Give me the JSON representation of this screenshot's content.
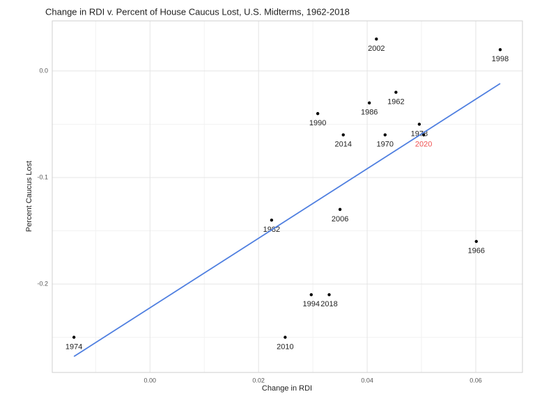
{
  "chart_data": {
    "type": "scatter",
    "title": "Change in RDI v. Percent of House Caucus Lost, U.S. Midterms, 1962-2018",
    "x_label": "Change in RDI",
    "y_label": "Percent Caucus Lost",
    "labels": [
      "2002",
      "1998",
      "1962",
      "1986",
      "1990",
      "1978",
      "2014",
      "1970",
      "2020",
      "2006",
      "1982",
      "1966",
      "1994",
      "2018",
      "1974",
      "2010"
    ],
    "x": [
      0.0417,
      0.0645,
      0.0453,
      0.0404,
      0.0309,
      0.0496,
      0.0356,
      0.0433,
      0.0504,
      0.035,
      0.0224,
      0.0601,
      0.0297,
      0.033,
      -0.014,
      0.0249
    ],
    "y": [
      0.03,
      0.02,
      -0.02,
      -0.03,
      -0.04,
      -0.05,
      -0.06,
      -0.06,
      -0.06,
      -0.13,
      -0.14,
      -0.16,
      -0.21,
      -0.21,
      -0.25,
      -0.25
    ],
    "point_color": "#000000",
    "label_colors": [
      "#222222",
      "#222222",
      "#222222",
      "#222222",
      "#222222",
      "#222222",
      "#222222",
      "#222222",
      "#f05050",
      "#222222",
      "#222222",
      "#222222",
      "#222222",
      "#222222",
      "#222222",
      "#222222"
    ],
    "fit": {
      "x": [
        -0.014,
        0.0645
      ],
      "y": [
        -0.268,
        -0.0118
      ],
      "color": "#4f7fe0"
    },
    "xlim": [
      -0.018,
      0.0686
    ],
    "ylim": [
      -0.283,
      0.047
    ],
    "xticks": [
      {
        "value": 0,
        "label": "0.00"
      },
      {
        "value": 0.02,
        "label": "0.02"
      },
      {
        "value": 0.04,
        "label": "0.04"
      },
      {
        "value": 0.06,
        "label": "0.06"
      }
    ],
    "yticks": [
      {
        "value": 0,
        "label": "0.0"
      },
      -0.1,
      -0.2
    ],
    "grid": true
  }
}
